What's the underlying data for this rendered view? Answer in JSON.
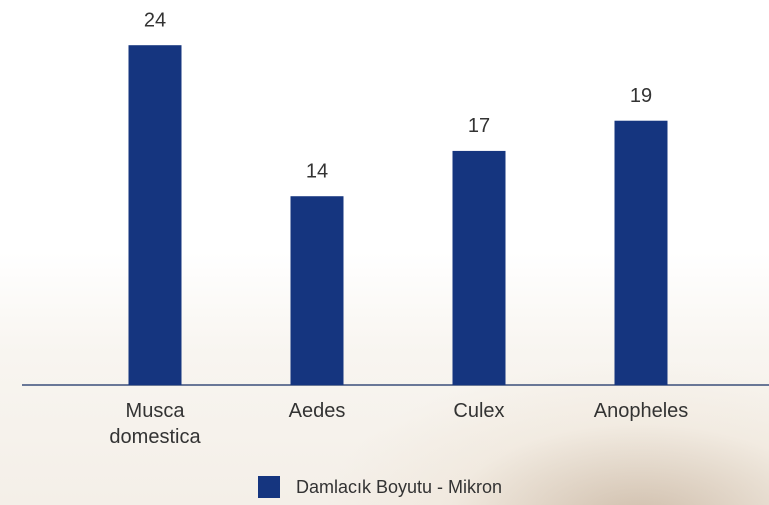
{
  "chart_data": {
    "type": "bar",
    "categories": [
      "Musca domestica",
      "Aedes",
      "Culex",
      "Anopheles"
    ],
    "series": [
      {
        "name": "Damlacık Boyutu - Mikron",
        "color": "#15357f",
        "values": [
          24,
          14,
          17,
          19
        ]
      }
    ],
    "ylim": [
      1.5,
      26
    ],
    "legend": "bottom"
  }
}
